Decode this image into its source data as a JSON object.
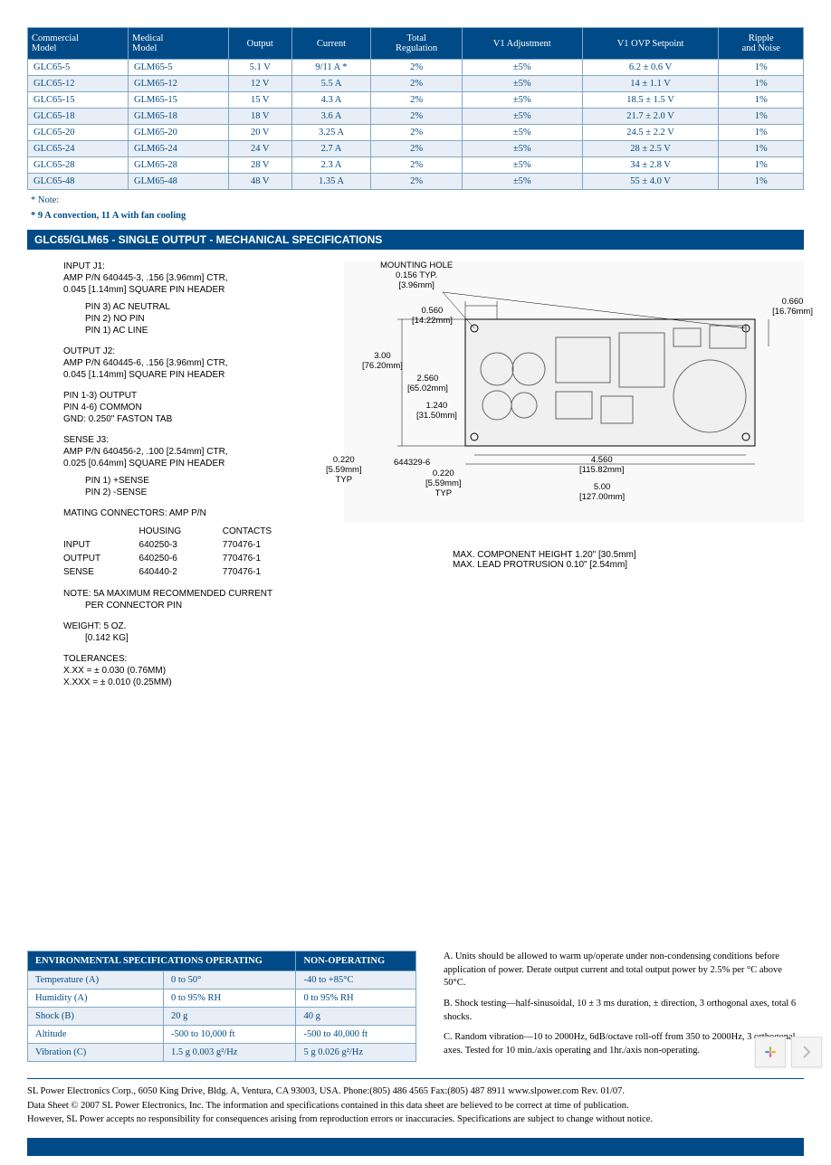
{
  "main_table": {
    "headers": [
      "Commercial\nModel",
      "Medical\nModel",
      "Output",
      "Current",
      "Total\nRegulation",
      "V1 Adjustment",
      "V1 OVP Setpoint",
      "Ripple\nand Noise"
    ],
    "rows": [
      [
        "GLC65-5",
        "GLM65-5",
        "5.1 V",
        "9/11 A  *",
        "2%",
        "±5%",
        "6.2 ± 0.6 V",
        "1%"
      ],
      [
        "GLC65-12",
        "GLM65-12",
        "12 V",
        "5.5 A",
        "2%",
        "±5%",
        "14 ± 1.1 V",
        "1%"
      ],
      [
        "GLC65-15",
        "GLM65-15",
        "15 V",
        "4.3 A",
        "2%",
        "±5%",
        "18.5 ± 1.5 V",
        "1%"
      ],
      [
        "GLC65-18",
        "GLM65-18",
        "18 V",
        "3.6 A",
        "2%",
        "±5%",
        "21.7 ± 2.0 V",
        "1%"
      ],
      [
        "GLC65-20",
        "GLM65-20",
        "20 V",
        "3.25 A",
        "2%",
        "±5%",
        "24.5 ± 2.2 V",
        "1%"
      ],
      [
        "GLC65-24",
        "GLM65-24",
        "24 V",
        "2.7 A",
        "2%",
        "±5%",
        "28 ± 2.5 V",
        "1%"
      ],
      [
        "GLC65-28",
        "GLM65-28",
        "28 V",
        "2.3 A",
        "2%",
        "±5%",
        "34 ± 2.8 V",
        "1%"
      ],
      [
        "GLC65-48",
        "GLM65-48",
        "48 V",
        "1.35 A",
        "2%",
        "±5%",
        "55 ± 4.0 V",
        "1%"
      ]
    ]
  },
  "notes": {
    "label": "*  Note:",
    "text": "* 9 A convection, 11 A with fan cooling"
  },
  "section_title": "GLC65/GLM65 - SINGLE OUTPUT - MECHANICAL SPECIFICATIONS",
  "mech": {
    "input_j1_title": "INPUT J1:",
    "input_j1_l1": "AMP P/N 640445-3, .156 [3.96mm] CTR,",
    "input_j1_l2": "0.045 [1.14mm] SQUARE PIN HEADER",
    "input_j1_pins": [
      "PIN 3) AC NEUTRAL",
      "PIN 2) NO PIN",
      "PIN 1) AC LINE"
    ],
    "output_j2_title": "OUTPUT J2:",
    "output_j2_l1": "AMP P/N 640445-6, .156 [3.96mm] CTR,",
    "output_j2_l2": "0.045 [1.14mm] SQUARE PIN HEADER",
    "output_j2_pins": [
      "PIN 1-3) OUTPUT",
      "PIN 4-6) COMMON",
      "GND: 0.250\" FASTON TAB"
    ],
    "sense_j3_title": "SENSE J3:",
    "sense_j3_l1": "AMP P/N 640456-2, .100 [2.54mm] CTR,",
    "sense_j3_l2": "0.025 [0.64mm] SQUARE PIN HEADER",
    "sense_j3_pins": [
      "PIN 1) +SENSE",
      "PIN 2) -SENSE"
    ],
    "mating_title": "MATING CONNECTORS: AMP P/N",
    "conn_headers": [
      "",
      "HOUSING",
      "CONTACTS"
    ],
    "conn_rows": [
      [
        "INPUT",
        "640250-3",
        "770476-1"
      ],
      [
        "OUTPUT",
        "640250-6",
        "770476-1"
      ],
      [
        "SENSE",
        "640440-2",
        "770476-1"
      ]
    ],
    "note_current": "NOTE: 5A MAXIMUM RECOMMENDED CURRENT",
    "note_current2": "PER CONNECTOR PIN",
    "weight": "WEIGHT: 5 OZ.",
    "weight_kg": "[0.142 KG]",
    "tol_title": "TOLERANCES:",
    "tol1": "X.XX = ± 0.030 (0.76MM)",
    "tol2": "X.XXX = ± 0.010 (0.25MM)",
    "mounting_hole": "MOUNTING HOLE",
    "mounting_typ": "0.156 TYP.",
    "mounting_mm": "[3.96mm]",
    "dims": {
      "d1": "0.560",
      "d1mm": "[14.22mm]",
      "d2": "3.00",
      "d2mm": "[76.20mm]",
      "d3": "2.560",
      "d3mm": "[65.02mm]",
      "d4": "1.240",
      "d4mm": "[31.50mm]",
      "d5": "0.220",
      "d5mm": "[5.59mm]",
      "d5typ": "TYP",
      "d6": "644329-6",
      "d7": "0.220",
      "d7mm": "[5.59mm]",
      "d7typ": "TYP",
      "d8": "4.560",
      "d8mm": "[115.82mm]",
      "d9": "5.00",
      "d9mm": "[127.00mm]",
      "d10": "0.660",
      "d10mm": "[16.76mm]"
    },
    "max_comp": "MAX. COMPONENT HEIGHT 1.20\" [30.5mm]",
    "max_lead": "MAX. LEAD PROTRUSION 0.10\" [2.54mm]"
  },
  "env_table": {
    "headers": [
      "ENVIRONMENTAL  SPECIFICATIONS OPERATING",
      "NON-OPERATING"
    ],
    "rows": [
      [
        "Temperature (A)",
        "0 to 50°",
        "-40 to +85°C"
      ],
      [
        "Humidity (A)",
        "0 to 95% RH",
        "0 to 95% RH"
      ],
      [
        "Shock (B)",
        "20 g",
        "40 g"
      ],
      [
        "Altitude",
        "-500 to 10,000 ft",
        "-500 to 40,000 ft"
      ],
      [
        "Vibration (C)",
        "1.5 g    0.003 g²/Hz",
        "5 g    0.026 g²/Hz"
      ]
    ]
  },
  "env_notes": {
    "a": "A. Units should be allowed to warm up/operate under non-condensing conditions before application of power. Derate output current and total output power by 2.5% per °C above 50°C.",
    "b": "B. Shock testing—half-sinusoidal, 10 ± 3 ms duration, ± direction, 3 orthogonal axes, total 6 shocks.",
    "c": "C. Random vibration—10 to 2000Hz, 6dB/octave roll-off from 350 to 2000Hz, 3 orthogonal axes. Tested for 10 min./axis operating and 1hr./axis non-operating."
  },
  "footer": {
    "l1": "SL Power Electronics Corp., 6050 King Drive, Bldg. A, Ventura, CA 93003, USA. Phone:(805) 486 4565 Fax:(805) 487 8911 www.slpower.com    Rev. 01/07.",
    "l2": "Data Sheet © 2007 SL Power Electronics, Inc. The information and specifications contained in this data sheet are believed to be correct at time of publication.",
    "l3": "However, SL Power accepts no responsibility for consequences arising from reproduction errors or inaccuracies. Specifications are subject to change without notice."
  },
  "colors": {
    "header_bg": "#004b87",
    "border": "#7fa8c9",
    "row_alt": "#e8eef5",
    "text_blue": "#004b87"
  }
}
